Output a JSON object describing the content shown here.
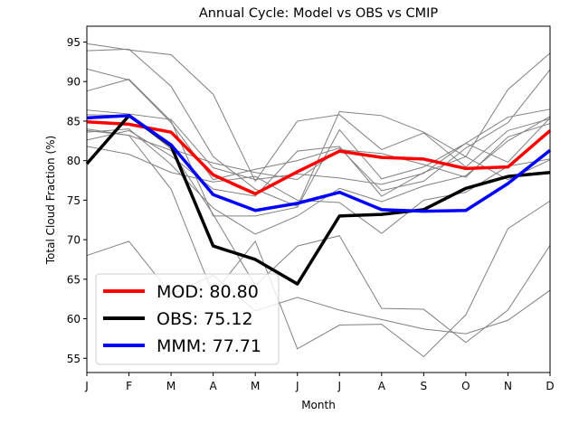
{
  "chart_data": {
    "type": "line",
    "title": "Annual Cycle: Model vs OBS vs CMIP",
    "xlabel": "Month",
    "ylabel": "Total Cloud Fraction (%)",
    "categories": [
      "J",
      "F",
      "M",
      "A",
      "M",
      "J",
      "J",
      "A",
      "S",
      "O",
      "N",
      "D"
    ],
    "ylim": [
      53.2,
      97.0
    ],
    "yticks": [
      55,
      60,
      65,
      70,
      75,
      80,
      85,
      90,
      95
    ],
    "legend_position": "lower-left",
    "grid": false,
    "colors": {
      "mod": "#ff0000",
      "obs": "#000000",
      "mmm": "#0000ff",
      "ensemble": "#808080"
    },
    "series": [
      {
        "name": "MOD: 80.80",
        "key": "mod",
        "values": [
          84.9,
          84.6,
          83.6,
          78.2,
          75.8,
          78.6,
          81.2,
          80.4,
          80.2,
          79.0,
          79.2,
          83.8
        ]
      },
      {
        "name": "OBS: 75.12",
        "key": "obs",
        "values": [
          79.6,
          85.7,
          81.9,
          69.2,
          67.5,
          64.4,
          73.0,
          73.2,
          73.8,
          76.5,
          78.0,
          78.5
        ]
      },
      {
        "name": "MMM: 77.71",
        "key": "mmm",
        "values": [
          85.4,
          85.7,
          82.0,
          75.7,
          73.7,
          74.6,
          76.0,
          73.8,
          73.6,
          73.7,
          77.1,
          81.3
        ]
      }
    ],
    "ensemble": [
      [
        94.8,
        94.0,
        93.4,
        88.4,
        77.4,
        85.0,
        85.8,
        81.4,
        83.5,
        79.2,
        83.8,
        85.3
      ],
      [
        93.9,
        94.1,
        89.4,
        80.5,
        76.4,
        74.2,
        86.2,
        85.7,
        83.6,
        80.5,
        89.0,
        93.6
      ],
      [
        91.6,
        90.2,
        84.8,
        77.6,
        78.9,
        80.0,
        81.6,
        76.2,
        77.4,
        81.6,
        84.8,
        91.5
      ],
      [
        88.8,
        90.3,
        85.0,
        73.0,
        73.0,
        74.1,
        83.9,
        77.7,
        79.2,
        82.2,
        85.5,
        86.5
      ],
      [
        86.4,
        85.9,
        85.2,
        79.1,
        77.6,
        78.3,
        77.8,
        77.0,
        78.4,
        82.2,
        79.8,
        85.4
      ],
      [
        85.8,
        85.7,
        81.5,
        79.7,
        78.5,
        77.6,
        81.4,
        80.9,
        79.5,
        77.9,
        83.0,
        84.7
      ],
      [
        83.6,
        84.0,
        79.5,
        74.0,
        70.7,
        73.0,
        76.5,
        74.8,
        76.8,
        78.1,
        82.5,
        85.6
      ],
      [
        82.6,
        83.8,
        80.6,
        76.4,
        75.5,
        81.2,
        81.8,
        75.5,
        78.5,
        80.5,
        77.6,
        80.1
      ],
      [
        81.8,
        80.8,
        78.5,
        77.3,
        78.0,
        75.0,
        74.7,
        70.8,
        75.0,
        76.0,
        79.3,
        80.2
      ],
      [
        68.0,
        69.8,
        63.1,
        65.5,
        61.0,
        62.7,
        61.1,
        59.9,
        58.7,
        58.1,
        59.8,
        63.6
      ],
      [
        84.0,
        83.2,
        76.4,
        63.1,
        69.8,
        56.2,
        59.2,
        59.3,
        55.2,
        60.5,
        71.4,
        74.9
      ],
      [
        83.8,
        83.2,
        81.3,
        73.2,
        64.2,
        69.2,
        70.5,
        61.3,
        61.2,
        57.0,
        61.1,
        69.3
      ]
    ]
  }
}
